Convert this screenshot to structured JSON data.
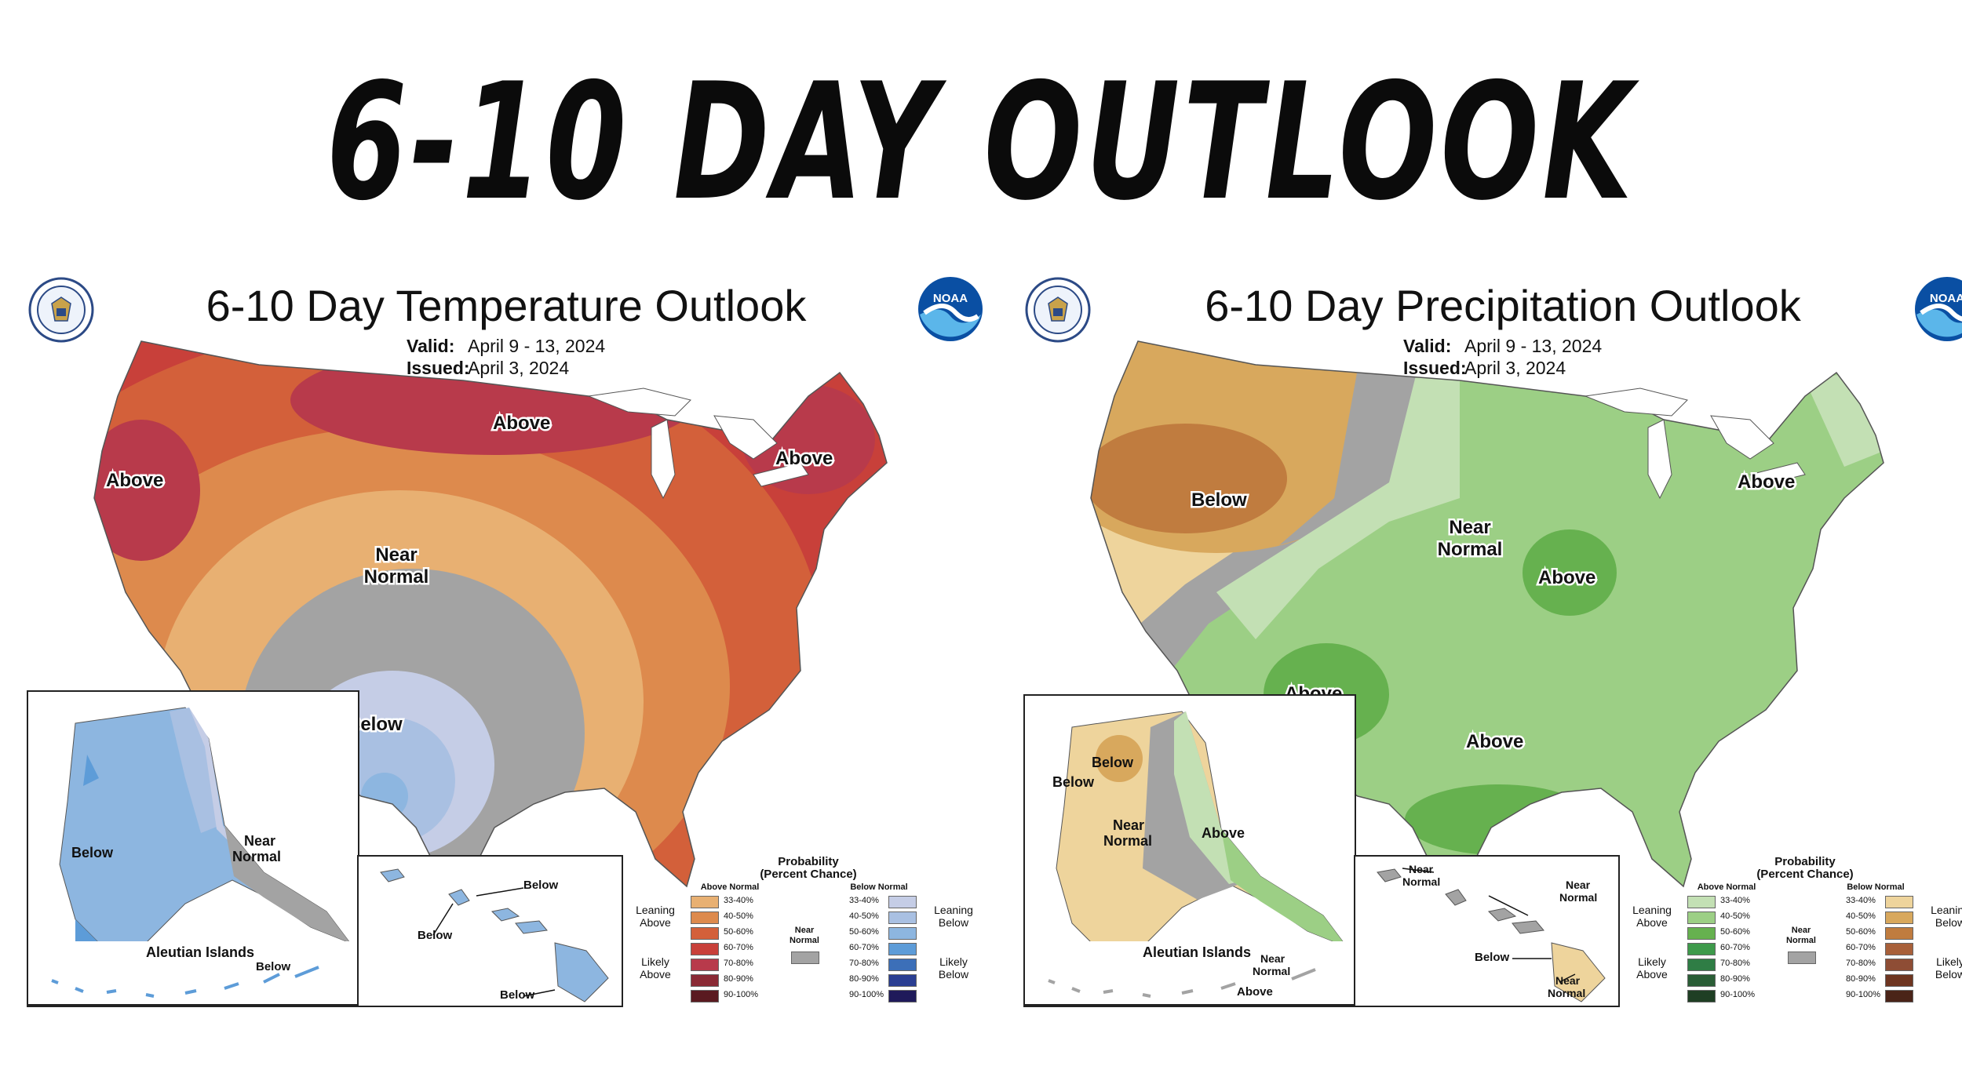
{
  "headline": "6-10 DAY OUTLOOK",
  "temperature": {
    "title": "6-10 Day Temperature Outlook",
    "valid_label": "Valid:",
    "valid_value": "April 9 - 13, 2024",
    "issued_label": "Issued:",
    "issued_value": "April 3, 2024",
    "map_labels": {
      "above_west": "Above",
      "above_north": "Above",
      "above_ne": "Above",
      "near_normal_1": "Near",
      "near_normal_2": "Normal",
      "below": "Below"
    },
    "alaska_labels": {
      "below": "Below",
      "near_1": "Near",
      "near_2": "Normal"
    },
    "aleutian": {
      "title": "Aleutian Islands",
      "below": "Below"
    },
    "hawaii_labels": {
      "below_1": "Below",
      "below_2": "Below",
      "below_3": "Below"
    },
    "legend": {
      "title_1": "Probability",
      "title_2": "(Percent Chance)",
      "above_header": "Above Normal",
      "below_header": "Below Normal",
      "leaning_above_1": "Leaning",
      "leaning_above_2": "Above",
      "likely_above_1": "Likely",
      "likely_above_2": "Above",
      "leaning_below_1": "Leaning",
      "leaning_below_2": "Below",
      "likely_below_1": "Likely",
      "likely_below_2": "Below",
      "near_1": "Near",
      "near_2": "Normal",
      "bins": [
        "33-40%",
        "40-50%",
        "50-60%",
        "60-70%",
        "70-80%",
        "80-90%",
        "90-100%"
      ],
      "above_colors": [
        "#e8b072",
        "#dd8a4d",
        "#d3603a",
        "#c8403a",
        "#b83a4b",
        "#8a2a35",
        "#5a1a20"
      ],
      "below_colors": [
        "#c5cde6",
        "#a9c0e2",
        "#8db6e0",
        "#5d9cd8",
        "#3c6fb8",
        "#2a3e92",
        "#1f1a5a"
      ],
      "near_color": "#a3a3a3"
    }
  },
  "precipitation": {
    "title": "6-10 Day Precipitation Outlook",
    "valid_label": "Valid:",
    "valid_value": "April 9 - 13, 2024",
    "issued_label": "Issued:",
    "issued_value": "April 3, 2024",
    "map_labels": {
      "below": "Below",
      "near_normal_1": "Near",
      "near_normal_2": "Normal",
      "above_ne": "Above",
      "above_mw": "Above",
      "above_sw": "Above",
      "above_gulf": "Above"
    },
    "alaska_labels": {
      "below_1": "Below",
      "below_2": "Below",
      "near_1": "Near",
      "near_2": "Normal",
      "above": "Above"
    },
    "aleutian": {
      "title": "Aleutian Islands",
      "near_1": "Near",
      "near_2": "Normal",
      "above": "Above"
    },
    "hawaii_labels": {
      "near_a1": "Near",
      "near_a2": "Normal",
      "near_b1": "Near",
      "near_b2": "Normal",
      "below": "Below",
      "near_c1": "Near",
      "near_c2": "Normal"
    },
    "legend": {
      "title_1": "Probability",
      "title_2": "(Percent Chance)",
      "above_header": "Above Normal",
      "below_header": "Below Normal",
      "leaning_above_1": "Leaning",
      "leaning_above_2": "Above",
      "likely_above_1": "Likely",
      "likely_above_2": "Above",
      "leaning_below_1": "Leaning",
      "leaning_below_2": "Below",
      "likely_below_1": "Likely",
      "likely_below_2": "Below",
      "near_1": "Near",
      "near_2": "Normal",
      "bins": [
        "33-40%",
        "40-50%",
        "50-60%",
        "60-70%",
        "70-80%",
        "80-90%",
        "90-100%"
      ],
      "above_colors": [
        "#c3e0b4",
        "#9ccf85",
        "#66b14f",
        "#3e9a4b",
        "#2f7d45",
        "#2a5d36",
        "#1f3f24"
      ],
      "below_colors": [
        "#eed49c",
        "#d8a85d",
        "#c07c3f",
        "#a8603a",
        "#8e4d35",
        "#6e3520",
        "#4a2418"
      ],
      "near_color": "#a3a3a3"
    }
  }
}
